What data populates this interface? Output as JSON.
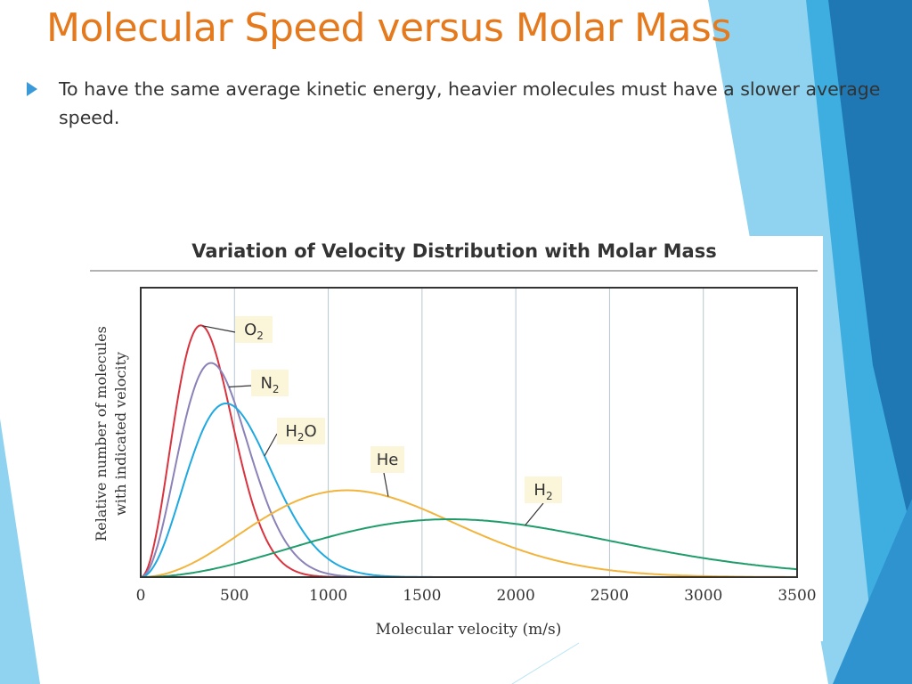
{
  "slide": {
    "title": "Molecular Speed versus Molar Mass",
    "bullet": "To have the same average kinetic energy, heavier molecules must have a slower average speed."
  },
  "colors": {
    "title": "#e47a1d",
    "bullet": "#3a9ad9",
    "deco_dark": "#1f78b4",
    "deco_mid": "#3eaee0",
    "deco_light": "#8fd3f0"
  },
  "chart_data": {
    "type": "line",
    "title": "Variation of Velocity Distribution with Molar Mass",
    "xlabel": "Molecular velocity (m/s)",
    "ylabel_line1": "Relative number of molecules",
    "ylabel_line2": "with indicated velocity",
    "xlim": [
      0,
      3500
    ],
    "ylim": [
      0,
      1
    ],
    "x_ticks": [
      0,
      500,
      1000,
      1500,
      2000,
      2500,
      3000,
      3500
    ],
    "grid": "vertical",
    "series": [
      {
        "name": "O2",
        "label_main": "O",
        "label_sub": "2",
        "color": "#d9333f",
        "peak_velocity": 320,
        "peak_height": 0.87
      },
      {
        "name": "N2",
        "label_main": "N",
        "label_sub": "2",
        "color": "#8a82b8",
        "peak_velocity": 375,
        "peak_height": 0.74
      },
      {
        "name": "H2O",
        "label_main": "H",
        "label_sub": "2",
        "label_tail": "O",
        "color": "#1fa9e1",
        "peak_velocity": 455,
        "peak_height": 0.6
      },
      {
        "name": "He",
        "label_main": "He",
        "label_sub": "",
        "color": "#f2b43c",
        "peak_velocity": 1100,
        "peak_height": 0.3
      },
      {
        "name": "H2",
        "label_main": "H",
        "label_sub": "2",
        "color": "#1e9c6a",
        "peak_velocity": 1650,
        "peak_height": 0.2
      }
    ]
  }
}
